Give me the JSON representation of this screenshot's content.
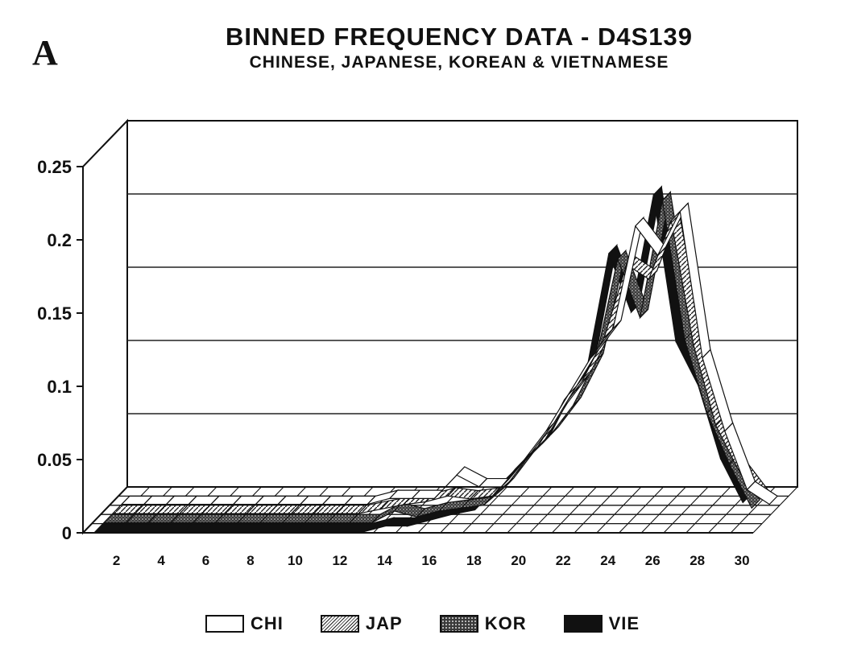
{
  "panel_label": "A",
  "chart_data": {
    "type": "line",
    "style": "3d-ribbon",
    "title": "BINNED FREQUENCY DATA - D4S139",
    "subtitle": "CHINESE, JAPANESE, KOREAN & VIETNAMESE",
    "xlabel": "",
    "ylabel": "",
    "x": [
      1,
      2,
      3,
      4,
      5,
      6,
      7,
      8,
      9,
      10,
      11,
      12,
      13,
      14,
      15,
      16,
      17,
      18,
      19,
      20,
      21,
      22,
      23,
      24,
      25,
      26,
      27,
      28,
      29,
      30
    ],
    "x_tick_labels": [
      "2",
      "4",
      "6",
      "8",
      "10",
      "12",
      "14",
      "16",
      "18",
      "20",
      "22",
      "24",
      "26",
      "28",
      "30"
    ],
    "ylim": [
      0,
      0.25
    ],
    "y_tick_labels": [
      "0",
      "0.05",
      "0.1",
      "0.15",
      "0.2",
      "0.25"
    ],
    "grid": "horizontal",
    "legend_position": "bottom",
    "series": [
      {
        "name": "CHI",
        "fill": "#ffffff",
        "pattern": "none",
        "values": [
          0,
          0,
          0,
          0,
          0,
          0,
          0,
          0,
          0,
          0,
          0,
          0,
          0.004,
          0.004,
          0.004,
          0.02,
          0.012,
          0.012,
          0.03,
          0.05,
          0.075,
          0.1,
          0.12,
          0.19,
          0.17,
          0.2,
          0.1,
          0.05,
          0.01,
          0
        ]
      },
      {
        "name": "JAP",
        "fill": "#ffffff",
        "pattern": "diagonal-hatch",
        "values": [
          0,
          0,
          0,
          0,
          0,
          0,
          0,
          0,
          0,
          0,
          0,
          0,
          0.003,
          0.006,
          0.008,
          0.012,
          0.01,
          0.012,
          0.03,
          0.045,
          0.07,
          0.09,
          0.12,
          0.17,
          0.16,
          0.2,
          0.115,
          0.06,
          0.03,
          0.01
        ]
      },
      {
        "name": "KOR",
        "fill": "#444444",
        "pattern": "stipple",
        "values": [
          0,
          0,
          0,
          0,
          0,
          0,
          0,
          0,
          0,
          0,
          0,
          0,
          0,
          0.008,
          0.004,
          0.008,
          0.01,
          0.012,
          0.025,
          0.045,
          0.06,
          0.08,
          0.11,
          0.18,
          0.14,
          0.22,
          0.125,
          0.075,
          0.04,
          0.01
        ]
      },
      {
        "name": "VIE",
        "fill": "#111111",
        "pattern": "solid",
        "values": [
          0,
          0,
          0,
          0,
          0,
          0,
          0,
          0,
          0,
          0,
          0,
          0,
          0,
          0.004,
          0.004,
          0.008,
          0.012,
          0.015,
          0.03,
          0.045,
          0.06,
          0.09,
          0.11,
          0.19,
          0.15,
          0.23,
          0.13,
          0.1,
          0.05,
          0.02
        ]
      }
    ]
  }
}
